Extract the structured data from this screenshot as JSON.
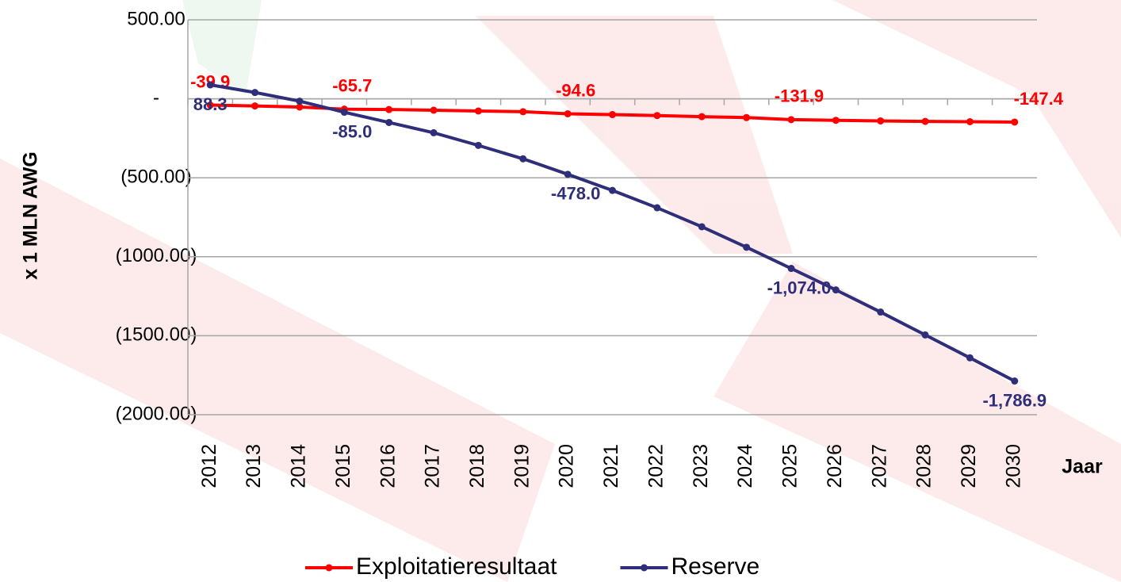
{
  "chart_data": {
    "type": "line",
    "y_label": "x 1 MLN AWG",
    "x_label": "Jaar",
    "categories": [
      "2012",
      "2013",
      "2014",
      "2015",
      "2016",
      "2017",
      "2018",
      "2019",
      "2020",
      "2021",
      "2022",
      "2023",
      "2024",
      "2025",
      "2026",
      "2027",
      "2028",
      "2029",
      "2030"
    ],
    "series": [
      {
        "name": "Exploitatieresultaat",
        "color": "#ff0000",
        "values": [
          -39.9,
          -45,
          -52,
          -65.7,
          -68,
          -72,
          -77,
          -82,
          -94.6,
          -100,
          -106,
          -113,
          -119,
          -131.9,
          -136,
          -140,
          -143,
          -145,
          -147.4
        ],
        "value_labels": [
          "-39.9",
          null,
          null,
          "-65.7",
          null,
          null,
          null,
          null,
          "-94.6",
          null,
          null,
          null,
          null,
          "-131.9",
          null,
          null,
          null,
          null,
          "-147.4"
        ]
      },
      {
        "name": "Reserve",
        "color": "#2e2e7a",
        "values": [
          88.3,
          40,
          -15,
          -85,
          -150,
          -215,
          -295,
          -380,
          -478,
          -580,
          -690,
          -810,
          -940,
          -1074,
          -1210,
          -1350,
          -1495,
          -1640,
          -1786.9
        ],
        "value_labels": [
          "88.3",
          null,
          null,
          "-85.0",
          null,
          null,
          null,
          null,
          "-478.0",
          null,
          null,
          null,
          null,
          "-1,074.0",
          null,
          null,
          null,
          null,
          "-1,786.9"
        ]
      }
    ],
    "ylim": [
      -2000,
      500
    ],
    "yticks": [
      {
        "value": 500,
        "label": "500.00"
      },
      {
        "value": 0,
        "label": "-"
      },
      {
        "value": -500,
        "label": "(500.00)"
      },
      {
        "value": -1000,
        "label": "(1000.00)"
      },
      {
        "value": -1500,
        "label": "(1500.00)"
      },
      {
        "value": -2000,
        "label": "(2000.00)"
      }
    ],
    "grid": true,
    "legend": "bottom"
  }
}
